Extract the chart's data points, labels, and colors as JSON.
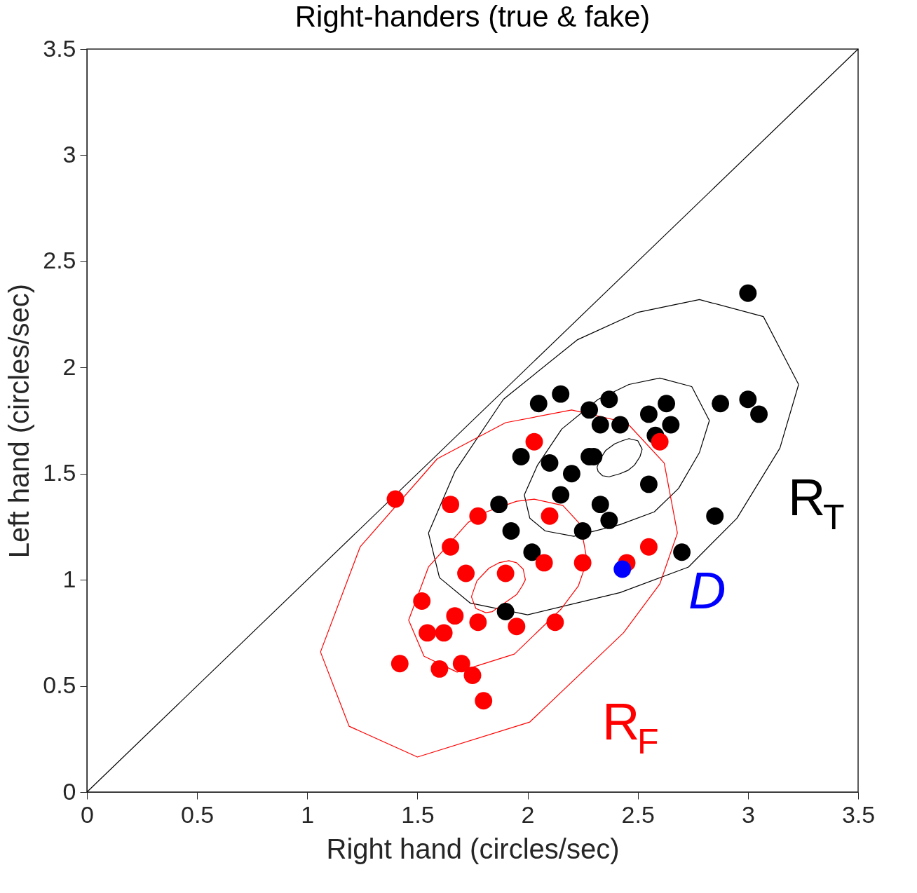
{
  "chart_data": {
    "type": "scatter",
    "title": "Right-handers (true & fake)",
    "xlabel": "Right hand (circles/sec)",
    "ylabel": "Left hand (circles/sec)",
    "xlim": [
      0,
      3.5
    ],
    "ylim": [
      0,
      3.5
    ],
    "xticks": [
      0,
      0.5,
      1,
      1.5,
      2,
      2.5,
      3,
      3.5
    ],
    "yticks": [
      0,
      0.5,
      1,
      1.5,
      2,
      2.5,
      3,
      3.5
    ],
    "series": [
      {
        "type": "line",
        "color": "#000000",
        "x": [
          0,
          3.5
        ],
        "values": [
          0,
          3.5
        ]
      },
      {
        "type": "line",
        "color": "#000000",
        "x": [
          1.55,
          1.67,
          1.89,
          2.225,
          2.5,
          2.78,
          3.07,
          3.23
        ],
        "values": [
          1.22,
          1.51,
          1.85,
          2.13,
          2.26,
          2.32,
          2.24,
          1.92
        ]
      },
      {
        "type": "line",
        "color": "#000000",
        "x": [
          1.55,
          1.6,
          1.74,
          2.0,
          2.42,
          2.73,
          2.95,
          3.145,
          3.23
        ],
        "values": [
          1.22,
          1.01,
          0.89,
          0.835,
          0.94,
          1.06,
          1.29,
          1.62,
          1.92
        ]
      },
      {
        "type": "line",
        "color": "#000000",
        "x": [
          1.985,
          2.045,
          2.155,
          2.32,
          2.46,
          2.6,
          2.745,
          2.825
        ],
        "values": [
          1.4,
          1.54,
          1.71,
          1.85,
          1.92,
          1.95,
          1.91,
          1.75
        ]
      },
      {
        "type": "line",
        "color": "#000000",
        "x": [
          1.985,
          2.01,
          2.08,
          2.21,
          2.42,
          2.575,
          2.685,
          2.78,
          2.825
        ],
        "values": [
          1.4,
          1.29,
          1.23,
          1.205,
          1.26,
          1.32,
          1.43,
          1.6,
          1.75
        ]
      },
      {
        "type": "line",
        "color": "#000000",
        "x": [
          2.315,
          2.33,
          2.355,
          2.395,
          2.43,
          2.46,
          2.5,
          2.52
        ],
        "values": [
          1.53,
          1.57,
          1.61,
          1.64,
          1.655,
          1.665,
          1.655,
          1.615
        ]
      },
      {
        "type": "line",
        "color": "#000000",
        "x": [
          2.315,
          2.32,
          2.34,
          2.37,
          2.42,
          2.455,
          2.485,
          2.51,
          2.52
        ],
        "values": [
          1.53,
          1.51,
          1.49,
          1.485,
          1.5,
          1.515,
          1.54,
          1.58,
          1.615
        ]
      },
      {
        "type": "line",
        "color": "#ff0000",
        "x": [
          1.06,
          1.24,
          1.59,
          1.9,
          2.2,
          2.45,
          2.62,
          2.68
        ],
        "values": [
          0.66,
          1.155,
          1.57,
          1.74,
          1.8,
          1.74,
          1.55,
          1.22
        ]
      },
      {
        "type": "line",
        "color": "#ff0000",
        "x": [
          1.06,
          1.19,
          1.5,
          2.01,
          2.435,
          2.6,
          2.68
        ],
        "values": [
          0.66,
          0.31,
          0.165,
          0.33,
          0.75,
          0.98,
          1.22
        ]
      },
      {
        "type": "line",
        "color": "#ff0000",
        "x": [
          1.46,
          1.55,
          1.73,
          1.8,
          1.95,
          2.03,
          2.16,
          2.24,
          2.27
        ],
        "values": [
          0.81,
          1.06,
          1.27,
          1.315,
          1.37,
          1.38,
          1.35,
          1.26,
          1.09
        ]
      },
      {
        "type": "line",
        "color": "#ff0000",
        "x": [
          1.46,
          1.53,
          1.68,
          1.94,
          2.15,
          2.23,
          2.27
        ],
        "values": [
          0.81,
          0.64,
          0.565,
          0.65,
          0.86,
          0.97,
          1.09
        ]
      },
      {
        "type": "line",
        "color": "#ff0000",
        "x": [
          1.745,
          1.77,
          1.825,
          1.87,
          1.915,
          1.95,
          1.98,
          1.99
        ],
        "values": [
          0.92,
          0.995,
          1.055,
          1.08,
          1.09,
          1.08,
          1.05,
          1.0
        ]
      },
      {
        "type": "line",
        "color": "#ff0000",
        "x": [
          1.745,
          1.765,
          1.81,
          1.84,
          1.95,
          1.975,
          1.99
        ],
        "values": [
          0.92,
          0.865,
          0.845,
          0.85,
          0.93,
          0.97,
          1.0
        ]
      },
      {
        "marker": "circle",
        "color": "#000000",
        "x": [
          3.0,
          2.05,
          2.15,
          2.28,
          2.37,
          2.55,
          2.63,
          2.65,
          2.33,
          2.42,
          2.58,
          2.875,
          3.0,
          3.05,
          1.97,
          2.1,
          2.28,
          2.3,
          2.2,
          2.55,
          2.15,
          1.87,
          2.33,
          2.37,
          1.925,
          2.25,
          2.02,
          2.85,
          2.7,
          1.9
        ],
        "values": [
          2.35,
          1.83,
          1.875,
          1.8,
          1.85,
          1.78,
          1.83,
          1.73,
          1.73,
          1.73,
          1.68,
          1.83,
          1.85,
          1.78,
          1.58,
          1.55,
          1.58,
          1.58,
          1.5,
          1.45,
          1.4,
          1.355,
          1.355,
          1.28,
          1.23,
          1.23,
          1.13,
          1.3,
          1.13,
          0.85
        ]
      },
      {
        "marker": "circle",
        "color": "#ff0000",
        "x": [
          1.4,
          2.03,
          2.6,
          1.65,
          1.775,
          2.1,
          1.65,
          1.72,
          1.9,
          2.075,
          2.25,
          2.45,
          2.55,
          1.52,
          1.67,
          1.775,
          1.95,
          2.125,
          1.545,
          1.62,
          1.42,
          1.6,
          1.7,
          1.75,
          1.8
        ],
        "values": [
          1.38,
          1.65,
          1.65,
          1.355,
          1.3,
          1.3,
          1.155,
          1.03,
          1.03,
          1.08,
          1.08,
          1.08,
          1.155,
          0.9,
          0.83,
          0.8,
          0.78,
          0.8,
          0.75,
          0.75,
          0.605,
          0.58,
          0.605,
          0.55,
          0.43
        ]
      },
      {
        "marker": "circle",
        "color": "#0000ff",
        "x": [
          2.43
        ],
        "values": [
          1.05
        ]
      }
    ],
    "annotations": [
      "R$_{T}$",
      "R$_{F}$",
      "D"
    ]
  }
}
